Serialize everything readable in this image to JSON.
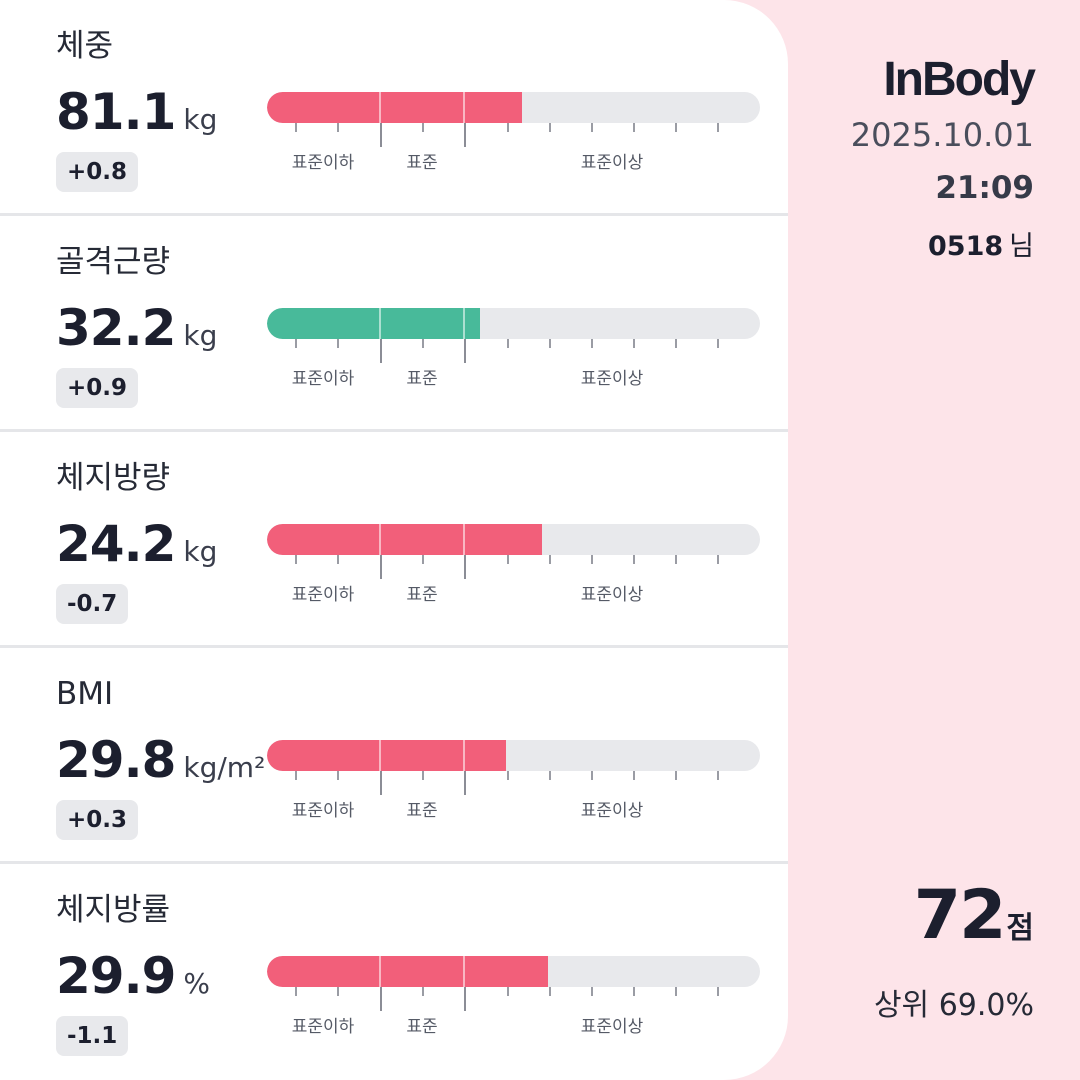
{
  "brand": {
    "logo_text": "InBody"
  },
  "session": {
    "date": "2025.10.01",
    "time": "21:09",
    "user_id": "0518",
    "user_suffix": "님"
  },
  "score": {
    "value": "72",
    "unit": "점",
    "rank_text": "상위 69.0%"
  },
  "gauge_labels": {
    "below": "표준이하",
    "standard": "표준",
    "above": "표준이상"
  },
  "colors": {
    "high": "#f25f7a",
    "normal": "#48ba9a",
    "track": "#e8e9ec",
    "panel_bg": "#fde4e9"
  },
  "metrics": [
    {
      "name": "체중",
      "value": "81.1",
      "unit": "kg",
      "delta": "+0.8",
      "level": 0.518,
      "status": "high"
    },
    {
      "name": "골격근량",
      "value": "32.2",
      "unit": "kg",
      "delta": "+0.9",
      "level": 0.433,
      "status": "normal"
    },
    {
      "name": "체지방량",
      "value": "24.2",
      "unit": "kg",
      "delta": "-0.7",
      "level": 0.558,
      "status": "high"
    },
    {
      "name": "BMI",
      "value": "29.8",
      "unit": "kg/m²",
      "delta": "+0.3",
      "level": 0.484,
      "status": "high"
    },
    {
      "name": "체지방률",
      "value": "29.9",
      "unit": "%",
      "delta": "-1.1",
      "level": 0.57,
      "status": "high"
    }
  ]
}
